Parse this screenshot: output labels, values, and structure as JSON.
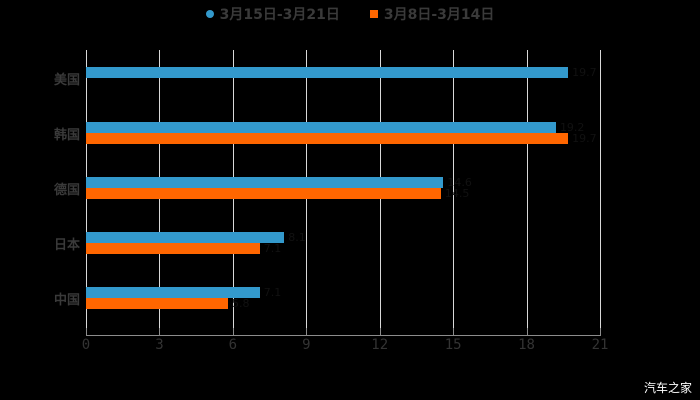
{
  "chart_data": {
    "type": "bar",
    "orientation": "horizontal",
    "title": "",
    "categories": [
      "美国",
      "韩国",
      "德国",
      "日本",
      "中国"
    ],
    "series": [
      {
        "name": "3月15日-3月21日",
        "color": "#3399cc",
        "marker": "circle",
        "values": [
          19.7,
          19.2,
          14.6,
          8.1,
          7.1
        ]
      },
      {
        "name": "3月8日-3月14日",
        "color": "#ff6600",
        "marker": "square",
        "values": [
          null,
          19.7,
          14.5,
          7.1,
          5.8
        ]
      }
    ],
    "xlabel": "",
    "ylabel": "",
    "xlim": [
      0,
      21
    ],
    "xticks": [
      "0",
      "3",
      "6",
      "9",
      "12",
      "15",
      "18",
      "21"
    ],
    "grid": true,
    "legend_position": "top"
  },
  "watermark": "汽车之家"
}
